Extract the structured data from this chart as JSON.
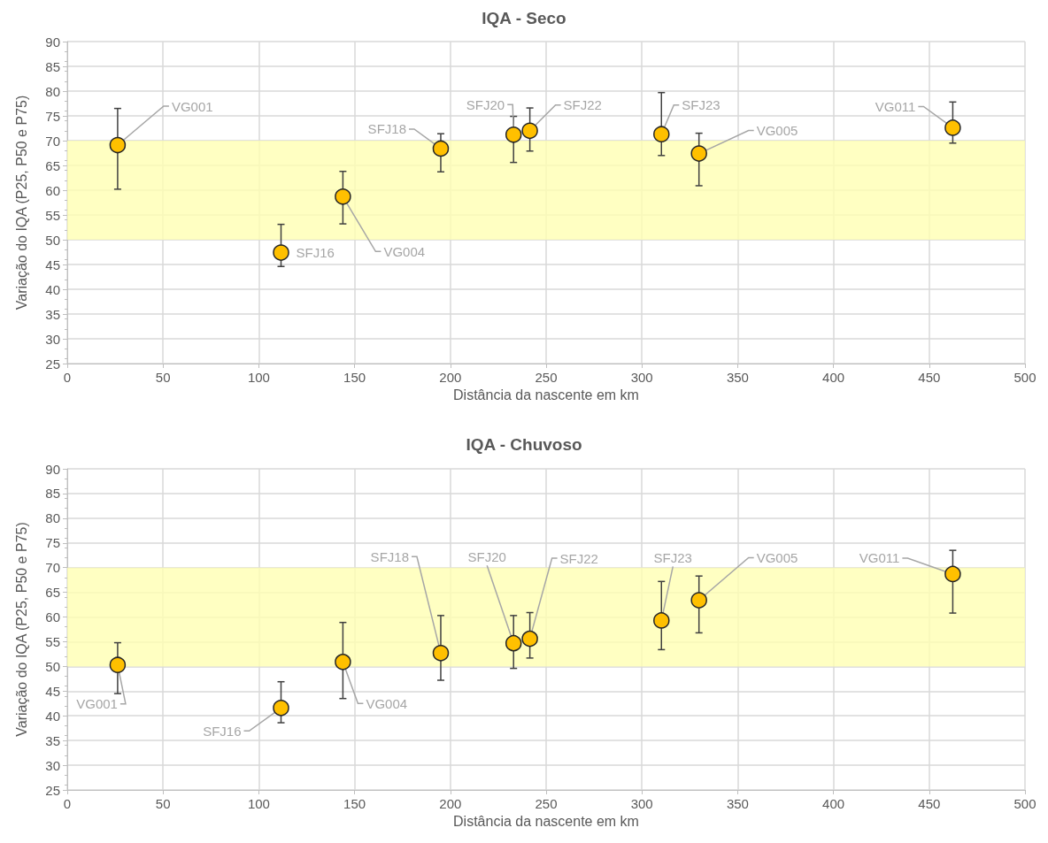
{
  "chart_data": [
    {
      "type": "scatter",
      "title": "IQA - Seco",
      "xlabel": "Distância da nascente em km",
      "ylabel": "Variação do IQA (P25, P50 e P75)",
      "x": [
        26.3,
        111.6,
        143.9,
        195,
        233,
        241.5,
        310.2,
        329.8,
        462.3
      ],
      "values": [
        69.1,
        47.4,
        58.7,
        68.4,
        71.2,
        72.0,
        71.3,
        67.4,
        72.6
      ],
      "errors": [
        [
          60.2,
          76.5
        ],
        [
          44.6,
          53.1
        ],
        [
          53.2,
          63.8
        ],
        [
          63.7,
          71.4
        ],
        [
          65.6,
          74.9
        ],
        [
          67.9,
          76.6
        ],
        [
          67.0,
          79.7
        ],
        [
          60.9,
          71.5
        ],
        [
          69.5,
          77.8
        ]
      ],
      "color": "#ffc000",
      "marker": "circle",
      "xlim": [
        0,
        500
      ],
      "xticks": [
        0,
        50,
        100,
        150,
        200,
        250,
        300,
        350,
        400,
        450,
        500
      ],
      "ylim": [
        25,
        90
      ],
      "yticks": [
        25,
        30,
        35,
        40,
        45,
        50,
        55,
        60,
        65,
        70,
        75,
        80,
        85,
        90
      ],
      "bands": [
        {
          "axis": "y",
          "from": 50,
          "to": 70,
          "color": "#ffffb3"
        }
      ],
      "grid": true,
      "annotations": [
        {
          "text": "VG001",
          "x": 26.3,
          "y": 69.1
        },
        {
          "text": "SFJ16",
          "x": 111.6,
          "y": 47.4
        },
        {
          "text": "VG004",
          "x": 143.9,
          "y": 58.7
        },
        {
          "text": "SFJ18",
          "x": 195,
          "y": 68.4
        },
        {
          "text": "SFJ20",
          "x": 233,
          "y": 71.2
        },
        {
          "text": "SFJ22",
          "x": 241.5,
          "y": 72.0
        },
        {
          "text": "SFJ23",
          "x": 310.2,
          "y": 71.3
        },
        {
          "text": "VG005",
          "x": 329.8,
          "y": 67.4
        },
        {
          "text": "VG011",
          "x": 462.3,
          "y": 72.6
        }
      ]
    },
    {
      "type": "scatter",
      "title": "IQA - Chuvoso",
      "xlabel": "Distância da nascente em km",
      "ylabel": "Variação do IQA (P25, P50 e P75)",
      "x": [
        26.3,
        111.6,
        143.9,
        195,
        233,
        241.5,
        310.2,
        329.8,
        462.3
      ],
      "values": [
        50.3,
        41.6,
        50.9,
        52.7,
        54.7,
        55.6,
        59.3,
        63.4,
        68.7
      ],
      "errors": [
        [
          44.5,
          54.8
        ],
        [
          38.6,
          46.9
        ],
        [
          43.5,
          58.9
        ],
        [
          47.2,
          60.3
        ],
        [
          49.6,
          60.3
        ],
        [
          51.7,
          60.9
        ],
        [
          53.4,
          67.2
        ],
        [
          56.8,
          68.3
        ],
        [
          60.8,
          73.5
        ]
      ],
      "color": "#ffc000",
      "marker": "circle",
      "xlim": [
        0,
        500
      ],
      "xticks": [
        0,
        50,
        100,
        150,
        200,
        250,
        300,
        350,
        400,
        450,
        500
      ],
      "ylim": [
        25,
        90
      ],
      "yticks": [
        25,
        30,
        35,
        40,
        45,
        50,
        55,
        60,
        65,
        70,
        75,
        80,
        85,
        90
      ],
      "bands": [
        {
          "axis": "y",
          "from": 50,
          "to": 70,
          "color": "#ffffb3"
        }
      ],
      "grid": true,
      "annotations": [
        {
          "text": "VG001",
          "x": 26.3,
          "y": 50.3
        },
        {
          "text": "SFJ16",
          "x": 111.6,
          "y": 41.6
        },
        {
          "text": "VG004",
          "x": 143.9,
          "y": 50.9
        },
        {
          "text": "SFJ18",
          "x": 195,
          "y": 52.7
        },
        {
          "text": "SFJ20",
          "x": 233,
          "y": 54.7
        },
        {
          "text": "SFJ22",
          "x": 241.5,
          "y": 55.6
        },
        {
          "text": "SFJ23",
          "x": 310.2,
          "y": 59.3
        },
        {
          "text": "VG005",
          "x": 329.8,
          "y": 63.4
        },
        {
          "text": "VG011",
          "x": 462.3,
          "y": 68.7
        }
      ]
    }
  ]
}
